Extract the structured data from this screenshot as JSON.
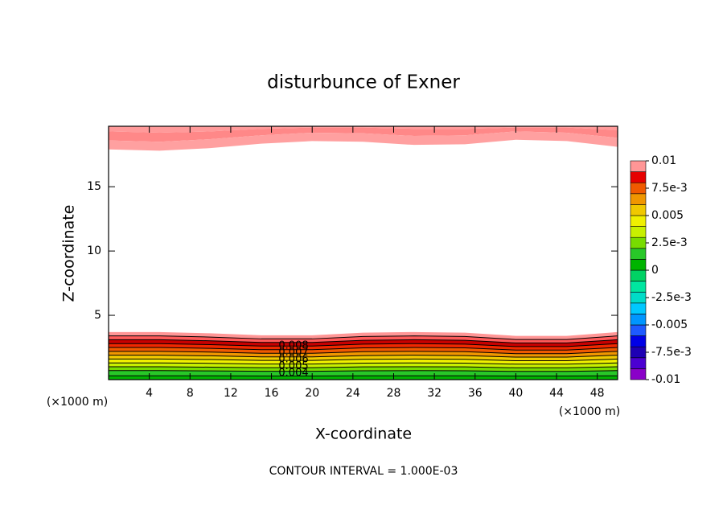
{
  "chart_data": {
    "type": "contour",
    "title": "disturbunce of Exner",
    "xlabel": "X-coordinate",
    "ylabel": "Z-coordinate",
    "unit_labels": [
      "(×1000 m)",
      "(×1000 m)"
    ],
    "annotation": "CONTOUR INTERVAL = 1.000E-03",
    "xlim": [
      0,
      50
    ],
    "ylim": [
      0,
      19.7
    ],
    "xticks": [
      4,
      8,
      12,
      16,
      20,
      24,
      28,
      32,
      36,
      40,
      44,
      48
    ],
    "yticks": [
      5,
      10,
      15
    ],
    "x": [
      0,
      5,
      10,
      15,
      20,
      25,
      30,
      35,
      40,
      45,
      50
    ],
    "lower_bands": [
      {
        "color": "#00b400",
        "top": [
          0.3,
          0.3,
          0.3,
          0.28,
          0.28,
          0.3,
          0.3,
          0.3,
          0.28,
          0.28,
          0.3
        ]
      },
      {
        "color": "#28c828",
        "top": [
          0.7,
          0.7,
          0.68,
          0.65,
          0.65,
          0.69,
          0.7,
          0.69,
          0.64,
          0.64,
          0.7
        ]
      },
      {
        "color": "#78dc00",
        "top": [
          1,
          1,
          0.97,
          0.93,
          0.93,
          0.99,
          1,
          0.99,
          0.92,
          0.92,
          1
        ]
      },
      {
        "color": "#c8f000",
        "top": [
          1.3,
          1.3,
          1.27,
          1.21,
          1.21,
          1.28,
          1.3,
          1.28,
          1.2,
          1.2,
          1.3
        ]
      },
      {
        "color": "#f0f000",
        "top": [
          1.6,
          1.6,
          1.56,
          1.49,
          1.49,
          1.58,
          1.6,
          1.58,
          1.47,
          1.47,
          1.6
        ]
      },
      {
        "color": "#f0c800",
        "top": [
          1.9,
          1.9,
          1.85,
          1.77,
          1.77,
          1.87,
          1.9,
          1.87,
          1.75,
          1.75,
          1.9
        ]
      },
      {
        "color": "#f09600",
        "top": [
          2.2,
          2.2,
          2.14,
          2.05,
          2.05,
          2.17,
          2.2,
          2.17,
          2.02,
          2.02,
          2.2
        ]
      },
      {
        "color": "#f05a00",
        "top": [
          2.5,
          2.5,
          2.43,
          2.33,
          2.33,
          2.47,
          2.5,
          2.47,
          2.3,
          2.3,
          2.5
        ]
      },
      {
        "color": "#f02800",
        "top": [
          2.8,
          2.8,
          2.72,
          2.61,
          2.61,
          2.76,
          2.8,
          2.76,
          2.57,
          2.57,
          2.8
        ]
      },
      {
        "color": "#c80000",
        "top": [
          3.1,
          3.1,
          3.02,
          2.89,
          2.89,
          3.06,
          3.1,
          3.06,
          2.85,
          2.85,
          3.1
        ]
      },
      {
        "color": "#ff5a5a",
        "top": [
          3.4,
          3.4,
          3.31,
          3.17,
          3.17,
          3.35,
          3.4,
          3.35,
          3.12,
          3.12,
          3.4
        ]
      },
      {
        "color": "#ff9696",
        "top": [
          3.7,
          3.7,
          3.6,
          3.45,
          3.45,
          3.65,
          3.7,
          3.65,
          3.4,
          3.4,
          3.7
        ]
      }
    ],
    "upper_bands": [
      {
        "color": "#ff9a9a",
        "bottom": [
          19.3,
          19.2,
          19.3,
          19.5,
          19.6,
          19.6,
          19.5,
          19.5,
          19.6,
          19.6,
          19.4
        ]
      },
      {
        "color": "#ff8888",
        "bottom": [
          18.6,
          18.5,
          18.7,
          19.0,
          19.2,
          19.15,
          18.95,
          19.0,
          19.3,
          19.2,
          18.8
        ]
      },
      {
        "color": "#ffa0a0",
        "bottom": [
          17.9,
          17.8,
          18.0,
          18.35,
          18.55,
          18.5,
          18.25,
          18.3,
          18.65,
          18.55,
          18.1
        ]
      }
    ],
    "contour_labels": [
      "0.008",
      "0.007",
      "0.006",
      "0.005",
      "0.004"
    ],
    "colorbar": {
      "levels": [
        -0.01,
        -0.009,
        -0.008,
        -0.007,
        -0.006,
        -0.005,
        -0.004,
        -0.003,
        -0.002,
        -0.001,
        0,
        0.001,
        0.002,
        0.003,
        0.004,
        0.005,
        0.006,
        0.007,
        0.008,
        0.009,
        0.01
      ],
      "colors": [
        "#8a00c8",
        "#4b00d2",
        "#1e00b4",
        "#0000e6",
        "#1e5aff",
        "#0096ff",
        "#00c8ff",
        "#00dcc8",
        "#00e6a0",
        "#00d264",
        "#00b400",
        "#28c828",
        "#78dc00",
        "#c8f000",
        "#f0f000",
        "#f0c800",
        "#f09600",
        "#f05a00",
        "#e60000",
        "#ff9696"
      ],
      "ticks": [
        0.01,
        {
          "value": 0.0075,
          "label": "7.5e-3"
        },
        0.005,
        {
          "value": 0.0025,
          "label": "2.5e-3"
        },
        0,
        {
          "value": -0.0025,
          "label": "-2.5e-3"
        },
        -0.005,
        {
          "value": -0.0075,
          "label": "-7.5e-3"
        },
        -0.01
      ]
    }
  }
}
